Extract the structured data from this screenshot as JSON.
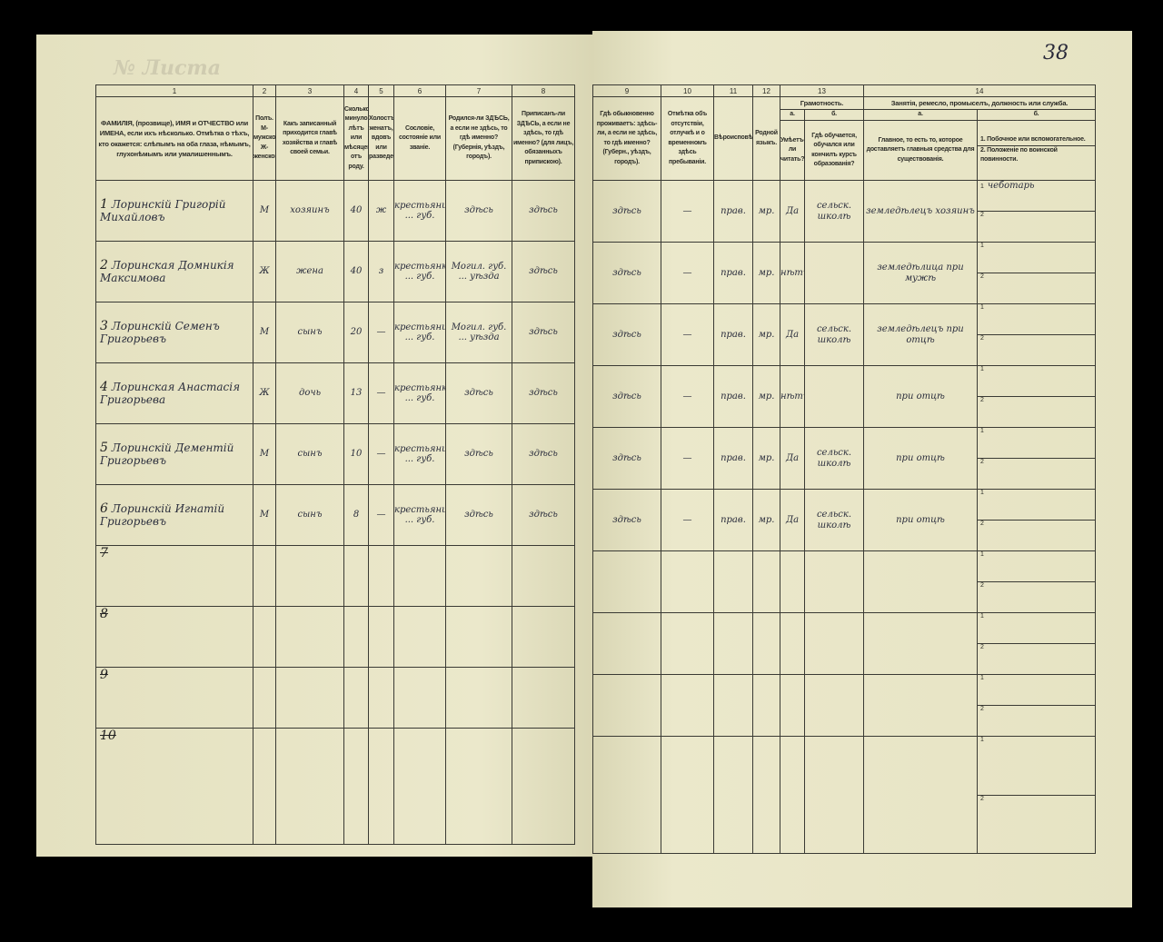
{
  "page_number": "38",
  "left_header": {
    "numbers": [
      "1",
      "2",
      "3",
      "4",
      "5",
      "6",
      "7",
      "8"
    ],
    "labels": [
      "ФАМИЛІЯ, (прозвище), ИМЯ и ОТЧЕСТВО или ИМЕНА, если ихъ нѣсколько. Отмѣтка о тѣхъ, кто окажется: слѣпымъ на оба глаза, нѣмымъ, глухонѣмымъ или умалишеннымъ.",
      "Полъ. М-мужской. Ж-женской.",
      "Какъ записанный приходится главѣ хозяйства и главѣ своей семьи.",
      "Сколько минуло лѣтъ или мѣсяцевъ отъ роду.",
      "Холостъ, женатъ, вдовъ или разведенъ.",
      "Сословіе, состояніе или званіе.",
      "Родился-ли ЗДѢСЬ, а если не здѣсь, то гдѣ именно? (Губернія, уѣздъ, городъ).",
      "Приписанъ-ли ЗДѢСЬ, а если не здѣсь, то гдѣ именно? (для лицъ, обязанныхъ припискою)."
    ]
  },
  "right_header": {
    "numbers": [
      "9",
      "10",
      "11",
      "12",
      "13",
      "14"
    ],
    "col9": "Гдѣ обыкновенно проживаетъ: здѣсь-ли, а если не здѣсь, то гдѣ именно? (Губерн., уѣздъ, городъ).",
    "col10": "Отмѣтка объ отсутствіи, отлучкѣ и о временномъ здѣсь пребываніи.",
    "col11": "Вѣроисповѣданіе.",
    "col12": "Родной языкъ.",
    "col13": "Грамотность.",
    "col13a": "а.",
    "col13b": "б.",
    "col13a_text": "Умѣетъ-ли читать?",
    "col13b_text": "Гдѣ обучается, обучался или кончилъ курсъ образованія?",
    "col14": "Занятія, ремесло, промыселъ, должность или служба.",
    "col14a": "а.",
    "col14b": "б.",
    "col14a_text": "Главное, то есть то, которое доставляетъ главныя средства для существованія.",
    "col14b_1": "1. Побочное или вспомогательное.",
    "col14b_2": "2. Положеніе по воинской повинности."
  },
  "rows": [
    {
      "n": "1",
      "name": "Лоринскій Григорій Михайловъ",
      "sex": "М",
      "relation": "хозяинъ",
      "age": "40",
      "marital": "ж",
      "estate": "крестьянинъ ... губ.",
      "born": "здѣсь",
      "registered": "здѣсь",
      "residence": "здѣсь",
      "absence": "—",
      "religion": "прав.",
      "language": "мр.",
      "literate": "Да",
      "school": "сельск. школѣ",
      "occupation": "земледѣлецъ хозяинъ",
      "side1": "чеботарь",
      "side2": ""
    },
    {
      "n": "2",
      "name": "Лоринская Домникія Максимова",
      "sex": "Ж",
      "relation": "жена",
      "age": "40",
      "marital": "з",
      "estate": "крестьянка ... губ.",
      "born": "Могил. губ. ... уѣзда",
      "registered": "здѣсь",
      "residence": "здѣсь",
      "absence": "—",
      "religion": "прав.",
      "language": "мр.",
      "literate": "нѣтъ",
      "school": "",
      "occupation": "земледѣлица при мужѣ",
      "side1": "",
      "side2": ""
    },
    {
      "n": "3",
      "name": "Лоринскій Семенъ Григорьевъ",
      "sex": "М",
      "relation": "сынъ",
      "age": "20",
      "marital": "—",
      "estate": "крестьянинъ ... губ.",
      "born": "Могил. губ. ... уѣзда",
      "registered": "здѣсь",
      "residence": "здѣсь",
      "absence": "—",
      "religion": "прав.",
      "language": "мр.",
      "literate": "Да",
      "school": "сельск. школѣ",
      "occupation": "земледѣлецъ при отцѣ",
      "side1": "",
      "side2": ""
    },
    {
      "n": "4",
      "name": "Лоринская Анастасія Григорьева",
      "sex": "Ж",
      "relation": "дочь",
      "age": "13",
      "marital": "—",
      "estate": "крестьянка ... губ.",
      "born": "здѣсь",
      "registered": "здѣсь",
      "residence": "здѣсь",
      "absence": "—",
      "religion": "прав.",
      "language": "мр.",
      "literate": "нѣтъ",
      "school": "",
      "occupation": "при отцѣ",
      "side1": "",
      "side2": ""
    },
    {
      "n": "5",
      "name": "Лоринскій Дементій Григорьевъ",
      "sex": "М",
      "relation": "сынъ",
      "age": "10",
      "marital": "—",
      "estate": "крестьянинъ ... губ.",
      "born": "здѣсь",
      "registered": "здѣсь",
      "residence": "здѣсь",
      "absence": "—",
      "religion": "прав.",
      "language": "мр.",
      "literate": "Да",
      "school": "сельск. школѣ",
      "occupation": "при отцѣ",
      "side1": "",
      "side2": ""
    },
    {
      "n": "6",
      "name": "Лоринскій Игнатій Григорьевъ",
      "sex": "М",
      "relation": "сынъ",
      "age": "8",
      "marital": "—",
      "estate": "крестьянинъ ... губ.",
      "born": "здѣсь",
      "registered": "здѣсь",
      "residence": "здѣсь",
      "absence": "—",
      "religion": "прав.",
      "language": "мр.",
      "literate": "Да",
      "school": "сельск. школѣ",
      "occupation": "при отцѣ",
      "side1": "",
      "side2": ""
    },
    {
      "n": "7"
    },
    {
      "n": "8"
    },
    {
      "n": "9"
    },
    {
      "n": "10"
    }
  ]
}
